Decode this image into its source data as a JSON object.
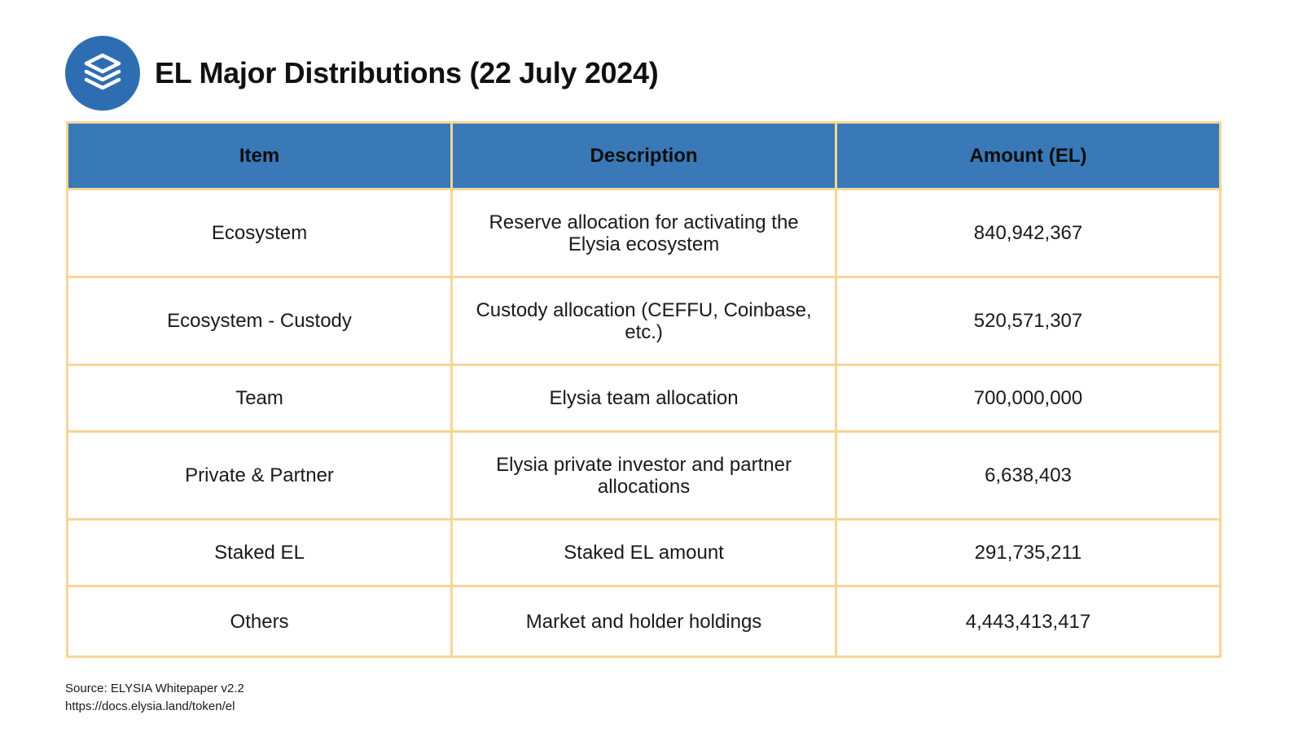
{
  "title": "EL Major Distributions (22 July 2024)",
  "logo_icon": "stacked-layers-icon",
  "colors": {
    "logo_background": "#2f6db3",
    "header_background": "#3979b7",
    "border": "#f8d596"
  },
  "table": {
    "headers": [
      "Item",
      "Description",
      "Amount (EL)"
    ],
    "rows": [
      {
        "item": "Ecosystem",
        "description": "Reserve allocation for activating the Elysia ecosystem",
        "amount": "840,942,367"
      },
      {
        "item": "Ecosystem - Custody",
        "description": "Custody allocation (CEFFU, Coinbase, etc.)",
        "amount": "520,571,307"
      },
      {
        "item": "Team",
        "description": "Elysia team allocation",
        "amount": "700,000,000"
      },
      {
        "item": "Private & Partner",
        "description": "Elysia private investor and partner allocations",
        "amount": "6,638,403"
      },
      {
        "item": "Staked EL",
        "description": "Staked EL amount",
        "amount": "291,735,211"
      },
      {
        "item": "Others",
        "description": "Market and holder holdings",
        "amount": "4,443,413,417"
      }
    ]
  },
  "source": {
    "line1": "Source: ELYSIA Whitepaper v2.2",
    "line2": "https://docs.elysia.land/token/el"
  }
}
